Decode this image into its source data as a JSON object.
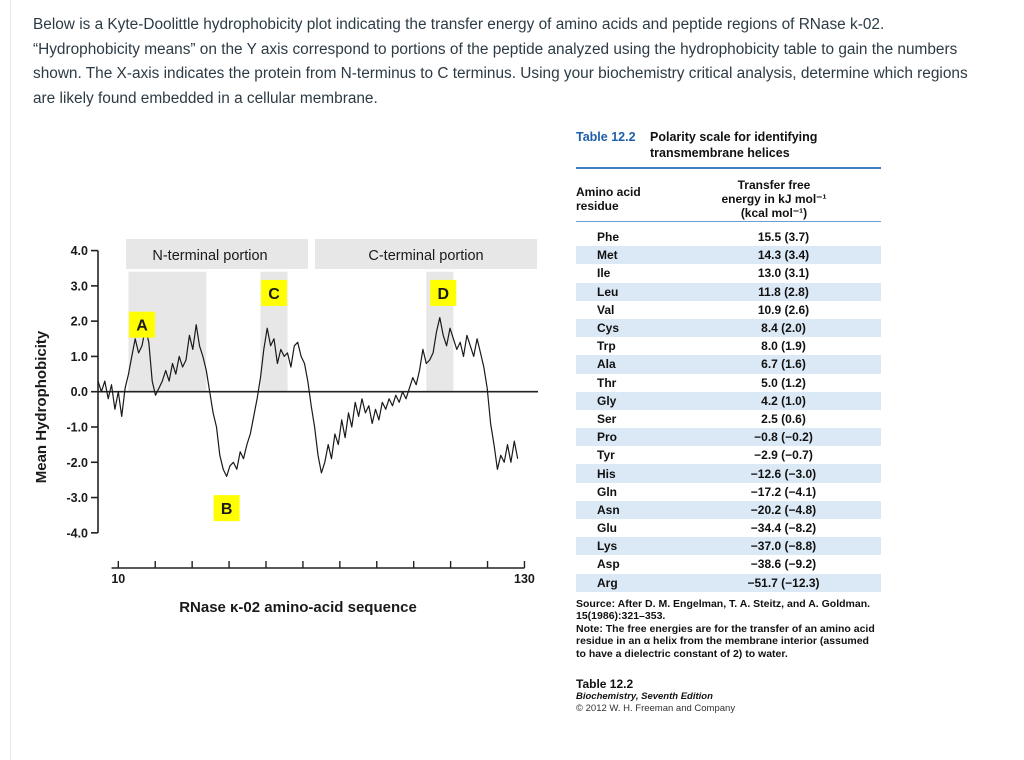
{
  "question": {
    "line1": "Below is a Kyte-Doolittle hydrophobicity plot indicating the transfer energy of amino acids and peptide regions of RNase k-02.",
    "line2": "“Hydrophobicity means” on the Y axis correspond to portions of the peptide analyzed using the hydrophobicity table to gain the numbers",
    "line3": "shown. The X-axis indicates the protein from N-terminus to C terminus. Using your biochemistry critical analysis, determine which regions",
    "line4": "are likely found embedded in a cellular membrane."
  },
  "chart_data": {
    "type": "line",
    "title": "",
    "xlabel": "RNase κ-02 amino-acid sequence",
    "ylabel": "Mean Hydrophobicity",
    "xlim": [
      4,
      134
    ],
    "ylim": [
      -4.6,
      4.3
    ],
    "x_ticks": [
      "10",
      "130"
    ],
    "y_ticks": [
      "4.0",
      "3.0",
      "2.0",
      "1.0",
      "0.0",
      "-1.0",
      "-2.0",
      "-3.0",
      "-4.0"
    ],
    "region_labels": {
      "n_terminal": "N-terminal portion",
      "c_terminal": "C-terminal portion"
    },
    "highlighted_regions": [
      {
        "from": 13,
        "to": 36
      },
      {
        "from": 52,
        "to": 60
      },
      {
        "from": 101,
        "to": 109
      }
    ],
    "callouts": [
      {
        "label": "A",
        "x": 17,
        "y": 1.9
      },
      {
        "label": "B",
        "x": 42,
        "y": -3.3
      },
      {
        "label": "C",
        "x": 56,
        "y": 2.8
      },
      {
        "label": "D",
        "x": 106,
        "y": 2.8
      }
    ],
    "series": [
      {
        "name": "Mean Hydrophobicity",
        "x": [
          4,
          5,
          6,
          7,
          8,
          9,
          10,
          11,
          12,
          13,
          14,
          15,
          16,
          17,
          18,
          19,
          20,
          21,
          22,
          23,
          24,
          25,
          26,
          27,
          28,
          29,
          30,
          31,
          32,
          33,
          34,
          35,
          36,
          37,
          38,
          39,
          40,
          41,
          42,
          43,
          44,
          45,
          46,
          47,
          48,
          49,
          50,
          51,
          52,
          53,
          54,
          55,
          56,
          57,
          58,
          59,
          60,
          61,
          62,
          63,
          64,
          65,
          66,
          67,
          68,
          69,
          70,
          71,
          72,
          73,
          74,
          75,
          76,
          77,
          78,
          79,
          80,
          81,
          82,
          83,
          84,
          85,
          86,
          87,
          88,
          89,
          90,
          91,
          92,
          93,
          94,
          95,
          96,
          97,
          98,
          99,
          100,
          101,
          102,
          103,
          104,
          105,
          106,
          107,
          108,
          109,
          110,
          111,
          112,
          113,
          114,
          115,
          116,
          117,
          118,
          119,
          120,
          121,
          122,
          123,
          124,
          125,
          126,
          127,
          128
        ],
        "values": [
          0.3,
          0.0,
          0.3,
          -0.2,
          0.2,
          -0.5,
          0.0,
          -0.7,
          0.1,
          0.5,
          1.0,
          1.5,
          1.1,
          1.3,
          1.8,
          1.4,
          0.3,
          -0.1,
          0.1,
          0.3,
          0.6,
          0.3,
          0.8,
          0.5,
          1.0,
          0.7,
          0.9,
          1.6,
          1.2,
          1.9,
          1.3,
          1.0,
          0.6,
          0.0,
          -0.6,
          -1.0,
          -1.8,
          -2.2,
          -2.4,
          -2.1,
          -2.0,
          -2.2,
          -1.7,
          -1.9,
          -1.5,
          -1.2,
          -0.7,
          -0.2,
          0.4,
          1.2,
          1.8,
          1.3,
          1.5,
          0.8,
          1.2,
          1.0,
          1.1,
          0.7,
          1.3,
          1.4,
          1.0,
          0.8,
          0.3,
          -0.4,
          -1.0,
          -1.8,
          -2.3,
          -2.0,
          -1.5,
          -1.9,
          -1.2,
          -1.5,
          -0.8,
          -1.3,
          -0.6,
          -1.0,
          -0.3,
          -0.7,
          -0.2,
          -0.6,
          -0.4,
          -0.9,
          -0.5,
          -0.8,
          -0.3,
          -0.5,
          -0.2,
          -0.4,
          -0.1,
          -0.3,
          0.0,
          -0.2,
          0.1,
          0.4,
          0.2,
          0.6,
          1.2,
          0.8,
          0.9,
          1.1,
          1.7,
          2.1,
          1.6,
          1.3,
          1.8,
          1.5,
          1.2,
          1.4,
          1.0,
          1.6,
          1.3,
          1.0,
          1.5,
          1.1,
          0.7,
          0.1,
          -0.9,
          -1.5,
          -2.2,
          -1.8,
          -2.0,
          -1.5,
          -2.0,
          -1.4,
          -1.9
        ]
      }
    ]
  },
  "table": {
    "number": "Table 12.2",
    "title": "Polarity scale for identifying transmembrane helices",
    "col1_header_line1": "Amino acid",
    "col1_header_line2": "residue",
    "col2_header_line1": "Transfer free",
    "col2_header_line2": "energy in kJ mol⁻¹",
    "col2_header_line3": "(kcal mol⁻¹)",
    "rows": [
      {
        "residue": "Phe",
        "energy": "15.5 (3.7)"
      },
      {
        "residue": "Met",
        "energy": "14.3 (3.4)"
      },
      {
        "residue": "Ile",
        "energy": "13.0 (3.1)"
      },
      {
        "residue": "Leu",
        "energy": "11.8 (2.8)"
      },
      {
        "residue": "Val",
        "energy": "10.9 (2.6)"
      },
      {
        "residue": "Cys",
        "energy": "8.4 (2.0)"
      },
      {
        "residue": "Trp",
        "energy": "8.0 (1.9)"
      },
      {
        "residue": "Ala",
        "energy": "6.7 (1.6)"
      },
      {
        "residue": "Thr",
        "energy": "5.0 (1.2)"
      },
      {
        "residue": "Gly",
        "energy": "4.2 (1.0)"
      },
      {
        "residue": "Ser",
        "energy": "2.5 (0.6)"
      },
      {
        "residue": "Pro",
        "energy": "−0.8 (−0.2)"
      },
      {
        "residue": "Tyr",
        "energy": "−2.9 (−0.7)"
      },
      {
        "residue": "His",
        "energy": "−12.6 (−3.0)"
      },
      {
        "residue": "Gln",
        "energy": "−17.2 (−4.1)"
      },
      {
        "residue": "Asn",
        "energy": "−20.2 (−4.8)"
      },
      {
        "residue": "Glu",
        "energy": "−34.4 (−8.2)"
      },
      {
        "residue": "Lys",
        "energy": "−37.0 (−8.8)"
      },
      {
        "residue": "Asp",
        "energy": "−38.6 (−9.2)"
      },
      {
        "residue": "Arg",
        "energy": "−51.7 (−12.3)"
      }
    ],
    "source": "Source: After D. M. Engelman, T. A. Steitz, and A. Goldman. 15(1986):321–353.",
    "note": "Note: The free energies are for the transfer of an amino acid residue in an α helix from the membrane interior (assumed to have a dielectric constant of 2) to water.",
    "credit_title": "Table 12.2",
    "credit_book": "Biochemistry, Seventh Edition",
    "credit_copyright": "© 2012 W. H. Freeman and Company"
  },
  "colors": {
    "highlight_box": "#e7e7e7",
    "callout_bg": "#ffff00",
    "table_accent": "#1f5fa8",
    "table_row_alt": "#dbe9f6"
  }
}
